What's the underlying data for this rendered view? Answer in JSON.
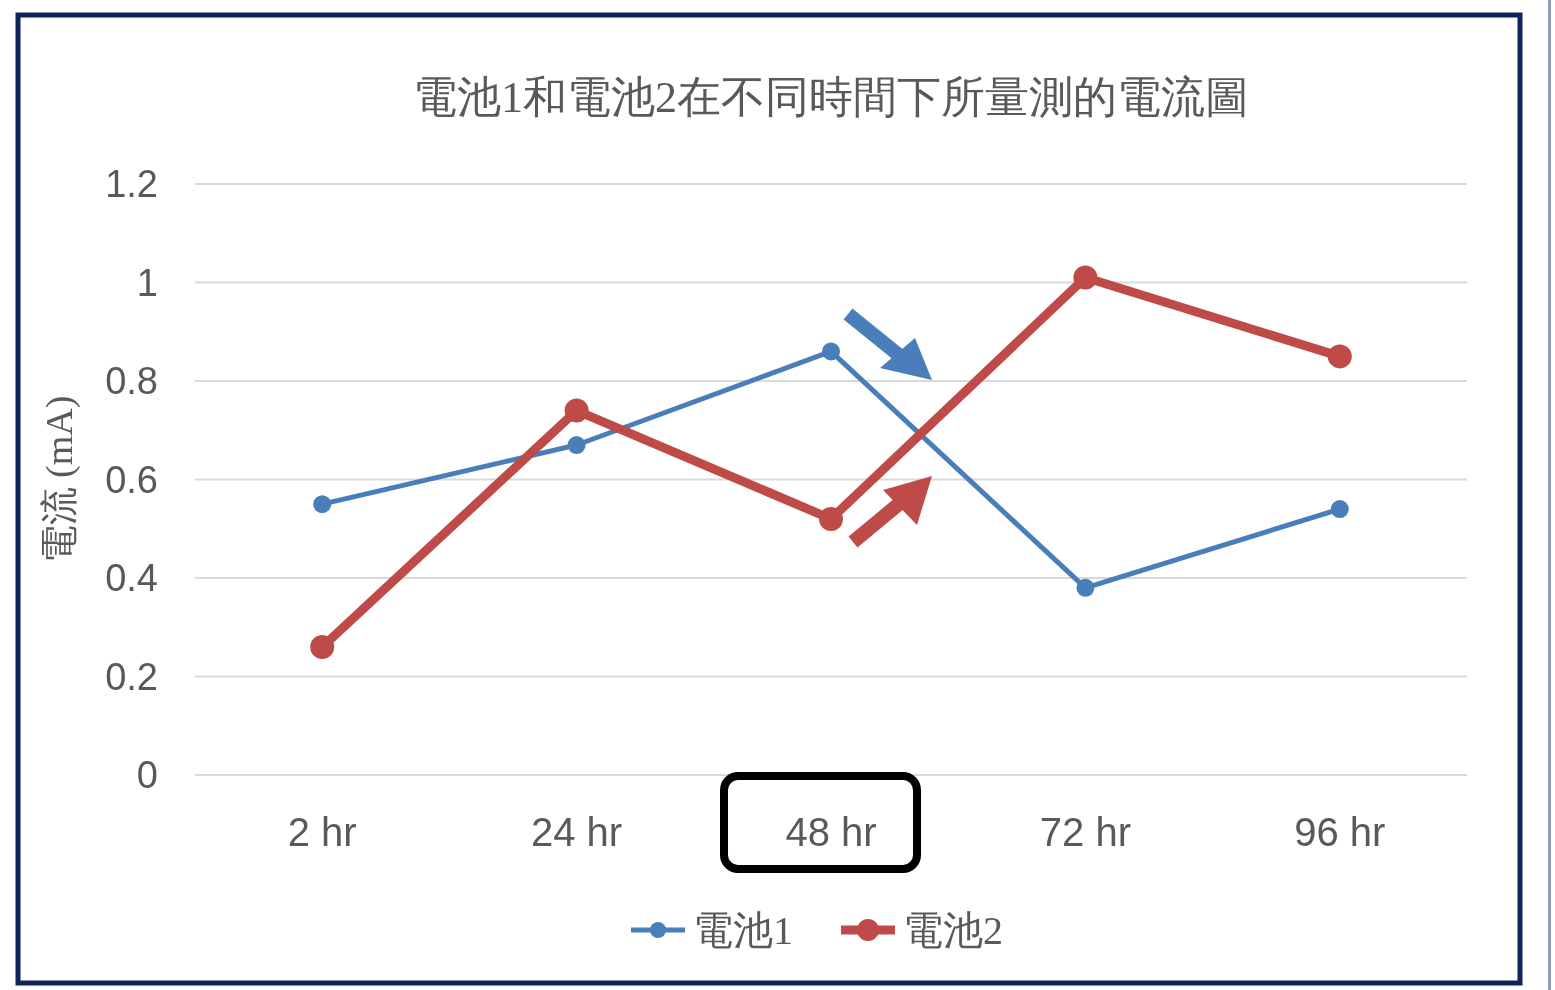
{
  "chart_data": {
    "type": "line",
    "title": "電池1和電池2在不同時間下所量測的電流圖",
    "ylabel": "電流 (mA)",
    "categories": [
      "2 hr",
      "24 hr",
      "48 hr",
      "72 hr",
      "96 hr"
    ],
    "series": [
      {
        "name": "電池1",
        "color": "#4a7ebb",
        "values": [
          0.55,
          0.67,
          0.86,
          0.38,
          0.54
        ]
      },
      {
        "name": "電池2",
        "color": "#be4b48",
        "values": [
          0.26,
          0.74,
          0.52,
          1.01,
          0.85
        ]
      }
    ],
    "ylim": [
      0,
      1.2
    ],
    "yticks": [
      0,
      0.2,
      0.4,
      0.6,
      0.8,
      1,
      1.2
    ],
    "grid": "y",
    "legend": "bottom",
    "marker": "circle",
    "line_style": "solid"
  }
}
